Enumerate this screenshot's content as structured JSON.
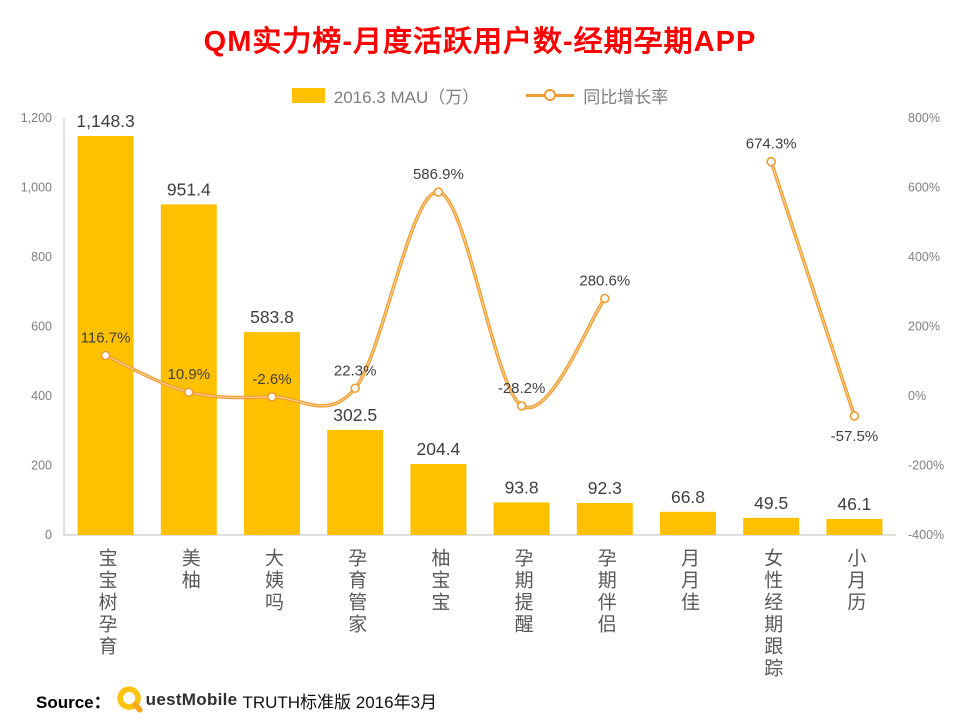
{
  "title": "QM实力榜-月度活跃用户数-经期孕期APP",
  "legend": {
    "bar": "2016.3 MAU（万）",
    "line": "同比增长率"
  },
  "source": {
    "label": "Source：",
    "brand_rest": "uestMobile",
    "suffix": "TRUTH标准版 2016年3月"
  },
  "colors": {
    "bar": "#ffc000",
    "line": "#ed9d31",
    "line_highlight": "#fbcd8e",
    "title": "#ff0000",
    "bar_label": "#3f3f3f",
    "line_label": "#3f3f3f",
    "axis_text": "#808080",
    "category_text": "#595959",
    "axis_line": "#bfbfbf"
  },
  "chart_data": {
    "type": "bar",
    "combo": "bar+line",
    "title": "QM实力榜-月度活跃用户数-经期孕期APP",
    "categories": [
      "宝宝树孕育",
      "美柚",
      "大姨吗",
      "孕育管家",
      "柚宝宝",
      "孕期提醒",
      "孕期伴侣",
      "月月佳",
      "女性经期跟踪",
      "小月历"
    ],
    "series": [
      {
        "name": "2016.3 MAU（万）",
        "type": "bar",
        "axis": "left",
        "values": [
          1148.3,
          951.4,
          583.8,
          302.5,
          204.4,
          93.8,
          92.3,
          66.8,
          49.5,
          46.1
        ],
        "labels": [
          "1,148.3",
          "951.4",
          "583.8",
          "302.5",
          "204.4",
          "93.8",
          "92.3",
          "66.8",
          "49.5",
          "46.1"
        ]
      },
      {
        "name": "同比增长率",
        "type": "line",
        "axis": "right",
        "unit": "%",
        "values": [
          116.7,
          10.9,
          -2.6,
          22.3,
          586.9,
          -28.2,
          280.6,
          null,
          674.3,
          -57.5
        ],
        "labels": [
          "116.7%",
          "10.9%",
          "-2.6%",
          "22.3%",
          "586.9%",
          "-28.2%",
          "280.6%",
          null,
          "674.3%",
          "-57.5%"
        ]
      }
    ],
    "left_axis": {
      "min": 0,
      "max": 1200,
      "step": 200,
      "tick_values": [
        0,
        200,
        400,
        600,
        800,
        1000,
        1200
      ],
      "tick_labels": [
        "0",
        "200",
        "400",
        "600",
        "800",
        "1,000",
        "1,200"
      ]
    },
    "right_axis": {
      "min": -400,
      "max": 800,
      "step": 200,
      "tick_values": [
        -400,
        -200,
        0,
        200,
        400,
        600,
        800
      ],
      "tick_labels": [
        "-400%",
        "-200%",
        "0%",
        "200%",
        "400%",
        "600%",
        "800%"
      ]
    },
    "grid": false,
    "legend_position": "top"
  }
}
